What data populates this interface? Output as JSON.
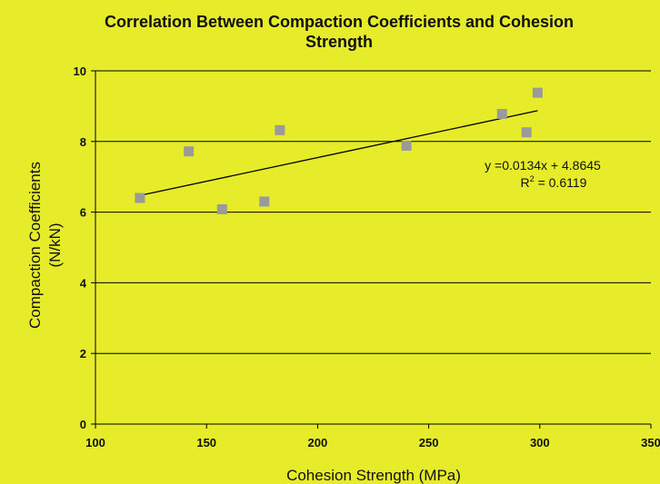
{
  "chart_data": {
    "type": "scatter",
    "title_line1": "Correlation Between Compaction Coefficients and Cohesion",
    "title_line2": "Strength",
    "xlabel": "Cohesion Strength (MPa)",
    "ylabel_line1": "Compaction Coefficients",
    "ylabel_line2": "(N/kN)",
    "xlim": [
      100,
      350
    ],
    "ylim": [
      0,
      10
    ],
    "x_ticks": [
      100,
      150,
      200,
      250,
      300,
      350
    ],
    "y_ticks": [
      0,
      2,
      4,
      6,
      8,
      10
    ],
    "grid": "horizontal",
    "points": [
      {
        "x": 120,
        "y": 6.4
      },
      {
        "x": 142,
        "y": 7.72
      },
      {
        "x": 157,
        "y": 6.08
      },
      {
        "x": 176,
        "y": 6.3
      },
      {
        "x": 183,
        "y": 8.32
      },
      {
        "x": 240,
        "y": 7.88
      },
      {
        "x": 283,
        "y": 8.78
      },
      {
        "x": 294,
        "y": 8.26
      },
      {
        "x": 299,
        "y": 9.38
      }
    ],
    "trendline": {
      "slope": 0.0134,
      "intercept": 4.8645,
      "x_start": 120,
      "x_end": 299
    },
    "equation": "y =0.0134x + 4.8645",
    "r2_label": "R",
    "r2_exp": "2",
    "r2_value": " = 0.6119",
    "colors": {
      "background": "#e6ec2a",
      "marker": "#9a9a9a",
      "line": "#000000"
    }
  }
}
